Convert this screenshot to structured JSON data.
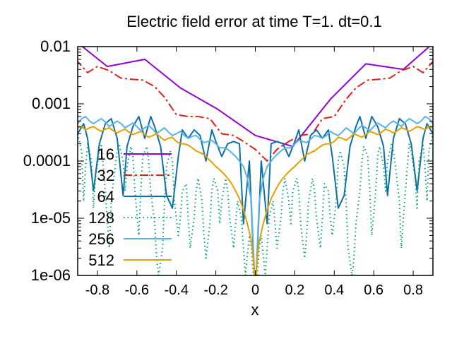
{
  "chart_data": {
    "type": "line",
    "title": "Electric field error at time T=1. dt=0.1",
    "xlabel": "x",
    "ylabel": "",
    "xlim": [
      -0.9,
      0.9
    ],
    "ylim": [
      1e-06,
      0.01
    ],
    "yscale": "log",
    "grid": false,
    "legend_placement": "left",
    "x_ticks": [
      {
        "value": -0.8,
        "label": "-0.8"
      },
      {
        "value": -0.6,
        "label": "-0.6"
      },
      {
        "value": -0.4,
        "label": "-0.4"
      },
      {
        "value": -0.2,
        "label": "-0.2"
      },
      {
        "value": 0.0,
        "label": "0"
      },
      {
        "value": 0.2,
        "label": "0.2"
      },
      {
        "value": 0.4,
        "label": "0.4"
      },
      {
        "value": 0.6,
        "label": "0.6"
      },
      {
        "value": 0.8,
        "label": "0.8"
      }
    ],
    "y_ticks": [
      {
        "value": 0.01,
        "label": "0.01"
      },
      {
        "value": 0.001,
        "label": "0.001"
      },
      {
        "value": 0.0001,
        "label": "0.0001"
      },
      {
        "value": 1e-05,
        "label": "1e-05"
      },
      {
        "value": 1e-06,
        "label": "1e-06"
      }
    ],
    "series": [
      {
        "name": "16",
        "color": "#9400d3",
        "dash": "none",
        "x": [
          -0.94,
          -0.75,
          -0.56,
          -0.38,
          -0.19,
          0.0,
          0.19,
          0.38,
          0.56,
          0.75,
          0.94
        ],
        "y": [
          0.015,
          0.0045,
          0.006,
          0.0019,
          0.0008,
          0.00028,
          0.00018,
          0.0012,
          0.005,
          0.004,
          0.015
        ]
      },
      {
        "name": "32",
        "color": "#e0201b",
        "dash": "12,4,3,4",
        "x": [
          -0.91,
          -0.85,
          -0.8,
          -0.74,
          -0.68,
          -0.63,
          -0.57,
          -0.51,
          -0.46,
          -0.4,
          -0.34,
          -0.29,
          -0.23,
          -0.17,
          -0.11,
          -0.06,
          0.0,
          0.06,
          0.11,
          0.17,
          0.23,
          0.29,
          0.34,
          0.4,
          0.46,
          0.51,
          0.57,
          0.63,
          0.68,
          0.74,
          0.8,
          0.85,
          0.91
        ],
        "y": [
          0.006,
          0.0035,
          0.0045,
          0.0038,
          0.0028,
          0.0027,
          0.0026,
          0.002,
          0.0013,
          0.00065,
          0.0006,
          0.0006,
          0.00055,
          0.0003,
          0.00028,
          0.00022,
          0.00016,
          0.0001,
          0.00016,
          0.00022,
          0.00028,
          0.0003,
          0.00055,
          0.0006,
          0.0012,
          0.0019,
          0.0026,
          0.0027,
          0.0028,
          0.0038,
          0.0045,
          0.0035,
          0.006
        ]
      },
      {
        "name": "64",
        "color": "#0c6fa8",
        "dash": "none",
        "x": [
          -0.9,
          -0.87,
          -0.85,
          -0.82,
          -0.79,
          -0.76,
          -0.73,
          -0.7,
          -0.67,
          -0.65,
          -0.62,
          -0.59,
          -0.56,
          -0.53,
          -0.51,
          -0.48,
          -0.45,
          -0.42,
          -0.39,
          -0.37,
          -0.34,
          -0.31,
          -0.28,
          -0.25,
          -0.22,
          -0.2,
          -0.17,
          -0.14,
          -0.11,
          -0.08,
          -0.06,
          -0.03,
          0.0,
          0.03,
          0.06,
          0.08,
          0.11,
          0.14,
          0.17,
          0.2,
          0.22,
          0.25,
          0.28,
          0.31,
          0.34,
          0.37,
          0.39,
          0.42,
          0.45,
          0.48,
          0.51,
          0.53,
          0.56,
          0.59,
          0.62,
          0.65,
          0.67,
          0.7,
          0.73,
          0.76,
          0.79,
          0.82,
          0.85,
          0.87,
          0.9
        ],
        "y": [
          0.0003,
          0.00045,
          0.00025,
          3e-05,
          0.0002,
          0.00045,
          0.00055,
          0.00025,
          2.5e-05,
          0.00018,
          0.0004,
          0.0006,
          0.00025,
          0.0006,
          0.0004,
          0.00018,
          2.5e-05,
          1.5e-05,
          0.00012,
          0.00035,
          0.00025,
          0.00035,
          0.00028,
          0.0001,
          0.00035,
          0.00022,
          0.00012,
          0.0002,
          0.00022,
          0.0002,
          8e-06,
          0.0001,
          4e-07,
          0.0001,
          8e-06,
          0.0002,
          0.00022,
          0.0002,
          0.00012,
          0.00022,
          0.00035,
          0.0001,
          0.00028,
          0.00035,
          0.00025,
          0.00035,
          0.00012,
          1.5e-05,
          2.5e-05,
          0.00018,
          0.0004,
          0.0006,
          0.00025,
          0.0006,
          0.0004,
          0.00018,
          2.5e-05,
          0.00025,
          0.00055,
          0.00045,
          0.0002,
          3e-05,
          0.00025,
          0.00045,
          0.0003
        ]
      },
      {
        "name": "128",
        "color": "#009e73",
        "dash": "1.5,4",
        "x": [
          -0.9,
          -0.88,
          -0.87,
          -0.86,
          -0.85,
          -0.83,
          -0.82,
          -0.81,
          -0.79,
          -0.78,
          -0.77,
          -0.75,
          -0.74,
          -0.73,
          -0.71,
          -0.7,
          -0.69,
          -0.67,
          -0.66,
          -0.65,
          -0.63,
          -0.62,
          -0.61,
          -0.59,
          -0.58,
          -0.57,
          -0.55,
          -0.54,
          -0.53,
          -0.51,
          -0.5,
          -0.49,
          -0.47,
          -0.46,
          -0.45,
          -0.43,
          -0.42,
          -0.41,
          -0.39,
          -0.38,
          -0.37,
          -0.35,
          -0.34,
          -0.33,
          -0.31,
          -0.3,
          -0.29,
          -0.27,
          -0.26,
          -0.25,
          -0.23,
          -0.22,
          -0.21,
          -0.19,
          -0.18,
          -0.17,
          -0.15,
          -0.14,
          -0.13,
          -0.11,
          -0.1,
          -0.09,
          -0.07,
          -0.06,
          -0.05,
          -0.03,
          -0.02,
          -0.01,
          0.0,
          0.01,
          0.02,
          0.03,
          0.05,
          0.06,
          0.07,
          0.09,
          0.1,
          0.11,
          0.13,
          0.14,
          0.15,
          0.17,
          0.18,
          0.19,
          0.21,
          0.22,
          0.23,
          0.25,
          0.26,
          0.27,
          0.29,
          0.3,
          0.31,
          0.33,
          0.34,
          0.35,
          0.37,
          0.38,
          0.39,
          0.41,
          0.42,
          0.43,
          0.45,
          0.46,
          0.47,
          0.49,
          0.5,
          0.51,
          0.53,
          0.54,
          0.55,
          0.57,
          0.58,
          0.59,
          0.61,
          0.62,
          0.63,
          0.65,
          0.66,
          0.67,
          0.69,
          0.7,
          0.71,
          0.73,
          0.74,
          0.75,
          0.77,
          0.78,
          0.79,
          0.81,
          0.82,
          0.83,
          0.85,
          0.86,
          0.87,
          0.88,
          0.9
        ],
        "y": [
          0.0003,
          0.00015,
          2e-05,
          8e-05,
          0.0002,
          0.0001,
          1.5e-05,
          5e-05,
          0.00015,
          0.0002,
          8e-05,
          1e-05,
          3e-06,
          2e-05,
          8e-05,
          0.00015,
          0.0002,
          0.0001,
          3e-05,
          8e-05,
          0.00018,
          0.00012,
          3e-05,
          5e-06,
          3e-05,
          0.00012,
          0.00018,
          0.0001,
          3e-05,
          8e-06,
          2e-06,
          1e-06,
          3e-06,
          2e-05,
          8e-05,
          0.00015,
          0.0001,
          2e-05,
          5e-06,
          1e-05,
          3e-05,
          4e-05,
          1e-05,
          3e-06,
          1e-05,
          3e-05,
          5e-05,
          2e-05,
          5e-06,
          2e-06,
          8e-06,
          3e-05,
          5e-05,
          3e-05,
          8e-06,
          2e-05,
          5e-05,
          3e-05,
          1e-05,
          3e-06,
          8e-06,
          2e-05,
          1e-05,
          3e-06,
          1e-06,
          5e-06,
          3e-06,
          1e-06,
          1e-06,
          1e-06,
          3e-06,
          5e-06,
          1e-06,
          3e-06,
          1e-05,
          2e-05,
          8e-06,
          3e-06,
          1e-05,
          3e-05,
          5e-05,
          2e-05,
          8e-06,
          3e-05,
          5e-05,
          3e-05,
          8e-06,
          2e-06,
          5e-06,
          2e-05,
          5e-05,
          3e-05,
          1e-05,
          3e-06,
          1e-05,
          4e-05,
          3e-05,
          1e-05,
          5e-06,
          2e-05,
          0.0001,
          0.00015,
          8e-05,
          2e-05,
          3e-06,
          1e-06,
          2e-06,
          8e-06,
          3e-05,
          0.0001,
          0.00018,
          0.00012,
          3e-05,
          5e-06,
          3e-05,
          0.00012,
          0.00018,
          8e-05,
          3e-05,
          0.0001,
          0.0002,
          0.00015,
          8e-05,
          2e-05,
          3e-06,
          1e-05,
          8e-05,
          0.0002,
          0.00015,
          5e-05,
          1.5e-05,
          0.0001,
          0.0002,
          8e-05,
          2e-05,
          0.00015,
          0.0003
        ]
      },
      {
        "name": "256",
        "color": "#56b4e9",
        "dash": "none",
        "x": [
          -0.9,
          -0.88,
          -0.86,
          -0.84,
          -0.82,
          -0.8,
          -0.78,
          -0.76,
          -0.74,
          -0.72,
          -0.7,
          -0.68,
          -0.66,
          -0.64,
          -0.62,
          -0.6,
          -0.58,
          -0.56,
          -0.54,
          -0.52,
          -0.5,
          -0.48,
          -0.46,
          -0.44,
          -0.42,
          -0.4,
          -0.38,
          -0.36,
          -0.34,
          -0.32,
          -0.3,
          -0.28,
          -0.26,
          -0.24,
          -0.22,
          -0.2,
          -0.18,
          -0.16,
          -0.14,
          -0.12,
          -0.1,
          -0.08,
          -0.06,
          -0.04,
          -0.02,
          0.0,
          0.02,
          0.04,
          0.06,
          0.08,
          0.1,
          0.12,
          0.14,
          0.16,
          0.18,
          0.2,
          0.22,
          0.24,
          0.26,
          0.28,
          0.3,
          0.32,
          0.34,
          0.36,
          0.38,
          0.4,
          0.42,
          0.44,
          0.46,
          0.48,
          0.5,
          0.52,
          0.54,
          0.56,
          0.58,
          0.6,
          0.62,
          0.64,
          0.66,
          0.68,
          0.7,
          0.72,
          0.74,
          0.76,
          0.78,
          0.8,
          0.82,
          0.84,
          0.86,
          0.88,
          0.9
        ],
        "y": [
          0.00045,
          0.00055,
          0.0006,
          0.0005,
          0.00045,
          0.0005,
          0.00055,
          0.00048,
          0.0004,
          0.00045,
          0.0005,
          0.00045,
          0.00038,
          0.00042,
          0.00046,
          0.0004,
          0.00034,
          0.00038,
          0.00042,
          0.00036,
          0.0003,
          0.00034,
          0.00038,
          0.00032,
          0.00028,
          0.0003,
          0.00033,
          0.00028,
          0.00025,
          0.00027,
          0.00028,
          0.00024,
          0.00021,
          0.00022,
          0.00023,
          0.0002,
          0.00017,
          0.00017,
          0.00016,
          0.00014,
          0.00012,
          0.0001,
          8e-05,
          5e-05,
          2e-05,
          5e-07,
          2e-05,
          5e-05,
          8e-05,
          0.0001,
          0.00012,
          0.00014,
          0.00016,
          0.00017,
          0.00017,
          0.0002,
          0.00023,
          0.00022,
          0.00021,
          0.00024,
          0.00028,
          0.00027,
          0.00025,
          0.00028,
          0.00033,
          0.0003,
          0.00028,
          0.00032,
          0.00038,
          0.00034,
          0.0003,
          0.00036,
          0.00042,
          0.00038,
          0.00034,
          0.0004,
          0.00046,
          0.00042,
          0.00038,
          0.00045,
          0.0005,
          0.00045,
          0.0004,
          0.00048,
          0.00055,
          0.0005,
          0.00045,
          0.0005,
          0.0006,
          0.00055,
          0.00045
        ]
      },
      {
        "name": "512",
        "color": "#e69f00",
        "dash": "none",
        "x": [
          -0.9,
          -0.88,
          -0.86,
          -0.84,
          -0.82,
          -0.8,
          -0.78,
          -0.76,
          -0.74,
          -0.72,
          -0.7,
          -0.68,
          -0.66,
          -0.64,
          -0.62,
          -0.6,
          -0.58,
          -0.56,
          -0.54,
          -0.52,
          -0.5,
          -0.48,
          -0.46,
          -0.44,
          -0.42,
          -0.4,
          -0.38,
          -0.36,
          -0.34,
          -0.32,
          -0.3,
          -0.28,
          -0.26,
          -0.24,
          -0.22,
          -0.2,
          -0.18,
          -0.16,
          -0.14,
          -0.12,
          -0.1,
          -0.08,
          -0.06,
          -0.04,
          -0.02,
          -0.01,
          0.0,
          0.01,
          0.02,
          0.04,
          0.06,
          0.08,
          0.1,
          0.12,
          0.14,
          0.16,
          0.18,
          0.2,
          0.22,
          0.24,
          0.26,
          0.28,
          0.3,
          0.32,
          0.34,
          0.36,
          0.38,
          0.4,
          0.42,
          0.44,
          0.46,
          0.48,
          0.5,
          0.52,
          0.54,
          0.56,
          0.58,
          0.6,
          0.62,
          0.64,
          0.66,
          0.68,
          0.7,
          0.72,
          0.74,
          0.76,
          0.78,
          0.8,
          0.82,
          0.84,
          0.86,
          0.88,
          0.9
        ],
        "y": [
          0.00038,
          0.0004,
          0.00035,
          0.00038,
          0.0004,
          0.00036,
          0.00033,
          0.00036,
          0.00038,
          0.00034,
          0.00031,
          0.00034,
          0.00036,
          0.00032,
          0.00029,
          0.00031,
          0.00033,
          0.00029,
          0.00026,
          0.00028,
          0.0003,
          0.00026,
          0.00023,
          0.00025,
          0.00026,
          0.00022,
          0.0002,
          0.0002,
          0.00019,
          0.00017,
          0.00015,
          0.00014,
          0.00013,
          0.00011,
          9.5e-05,
          8e-05,
          7e-05,
          6e-05,
          5e-05,
          4e-05,
          3e-05,
          2.2e-05,
          1.4e-05,
          8e-06,
          4e-06,
          2e-06,
          5e-07,
          2e-06,
          4e-06,
          8e-06,
          1.4e-05,
          2.2e-05,
          3e-05,
          4e-05,
          5e-05,
          6e-05,
          7e-05,
          8e-05,
          9.5e-05,
          0.00011,
          0.00013,
          0.00014,
          0.00015,
          0.00017,
          0.00019,
          0.0002,
          0.0002,
          0.00022,
          0.00026,
          0.00025,
          0.00023,
          0.00026,
          0.0003,
          0.00028,
          0.00026,
          0.00029,
          0.00033,
          0.00031,
          0.00029,
          0.00032,
          0.00036,
          0.00034,
          0.00031,
          0.00034,
          0.00038,
          0.00036,
          0.00033,
          0.00036,
          0.0004,
          0.00038,
          0.00035,
          0.0004,
          0.00038
        ]
      }
    ]
  }
}
